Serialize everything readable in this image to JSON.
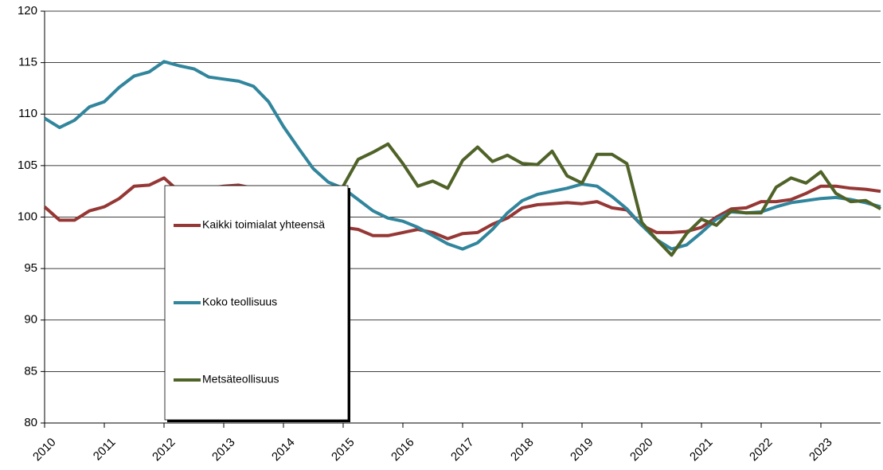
{
  "chart_data": {
    "type": "line",
    "x": [
      2010,
      2010.25,
      2010.5,
      2010.75,
      2011,
      2011.25,
      2011.5,
      2011.75,
      2012,
      2012.25,
      2012.5,
      2012.75,
      2013,
      2013.25,
      2013.5,
      2013.75,
      2014,
      2014.25,
      2014.5,
      2014.75,
      2015,
      2015.25,
      2015.5,
      2015.75,
      2016,
      2016.25,
      2016.5,
      2016.75,
      2017,
      2017.25,
      2017.5,
      2017.75,
      2018,
      2018.25,
      2018.5,
      2018.75,
      2019,
      2019.25,
      2019.5,
      2019.75,
      2020,
      2020.25,
      2020.5,
      2020.75,
      2021,
      2021.25,
      2021.5,
      2021.75,
      2022,
      2022.25,
      2022.5,
      2022.75,
      2023,
      2023.25,
      2023.5,
      2023.75,
      2024
    ],
    "series": [
      {
        "name": "Kaikki toimialat yhteensä",
        "color": "#953735",
        "values": [
          101,
          99.7,
          99.7,
          100.6,
          101,
          101.8,
          103,
          103.1,
          103.8,
          102.5,
          102.6,
          102.8,
          103,
          103.1,
          102.8,
          102.3,
          101.5,
          100.5,
          99.8,
          99.3,
          99,
          98.8,
          98.2,
          98.2,
          98.5,
          98.8,
          98.5,
          97.9,
          98.4,
          98.5,
          99.3,
          99.9,
          100.9,
          101.2,
          101.3,
          101.4,
          101.3,
          101.5,
          100.9,
          100.7,
          99.2,
          98.5,
          98.5,
          98.6,
          99,
          100,
          100.8,
          100.9,
          101.5,
          101.5,
          101.7,
          102.3,
          103,
          103,
          102.8,
          102.7,
          102.5
        ]
      },
      {
        "name": "Koko teollisuus",
        "color": "#31859c",
        "values": [
          109.6,
          108.7,
          109.4,
          110.7,
          111.2,
          112.6,
          113.7,
          114.1,
          115.1,
          114.7,
          114.4,
          113.6,
          113.4,
          113.2,
          112.7,
          111.2,
          108.8,
          106.7,
          104.7,
          103.4,
          102.8,
          101.7,
          100.6,
          99.9,
          99.6,
          99,
          98.2,
          97.4,
          96.9,
          97.5,
          98.8,
          100.4,
          101.6,
          102.2,
          102.5,
          102.8,
          103.2,
          103,
          102,
          100.8,
          99.2,
          97.8,
          96.9,
          97.3,
          98.5,
          99.8,
          100.5,
          100.4,
          100.5,
          101,
          101.4,
          101.6,
          101.8,
          101.9,
          101.7,
          101.4,
          101
        ]
      },
      {
        "name": "Metsäteollisuus",
        "color": "#4f6228",
        "values": [
          null,
          null,
          null,
          null,
          null,
          null,
          null,
          null,
          null,
          null,
          null,
          null,
          null,
          null,
          null,
          null,
          null,
          null,
          null,
          null,
          103,
          105.6,
          106.3,
          107.1,
          105.2,
          103,
          103.5,
          102.8,
          105.5,
          106.8,
          105.4,
          106,
          105.2,
          105.1,
          106.4,
          104,
          103.3,
          106.1,
          106.1,
          105.2,
          99.5,
          97.8,
          96.3,
          98.4,
          99.8,
          99.2,
          100.6,
          100.4,
          100.4,
          102.9,
          103.8,
          103.3,
          104.4,
          102.3,
          101.5,
          101.6,
          100.8
        ]
      }
    ],
    "xlim": [
      2010,
      2024
    ],
    "xticks": [
      2010,
      2011,
      2012,
      2013,
      2014,
      2015,
      2016,
      2017,
      2018,
      2019,
      2020,
      2021,
      2022,
      2023
    ],
    "ylim": [
      80,
      120
    ],
    "yticks": [
      80,
      85,
      90,
      95,
      100,
      105,
      110,
      115,
      120
    ],
    "grid": true
  }
}
